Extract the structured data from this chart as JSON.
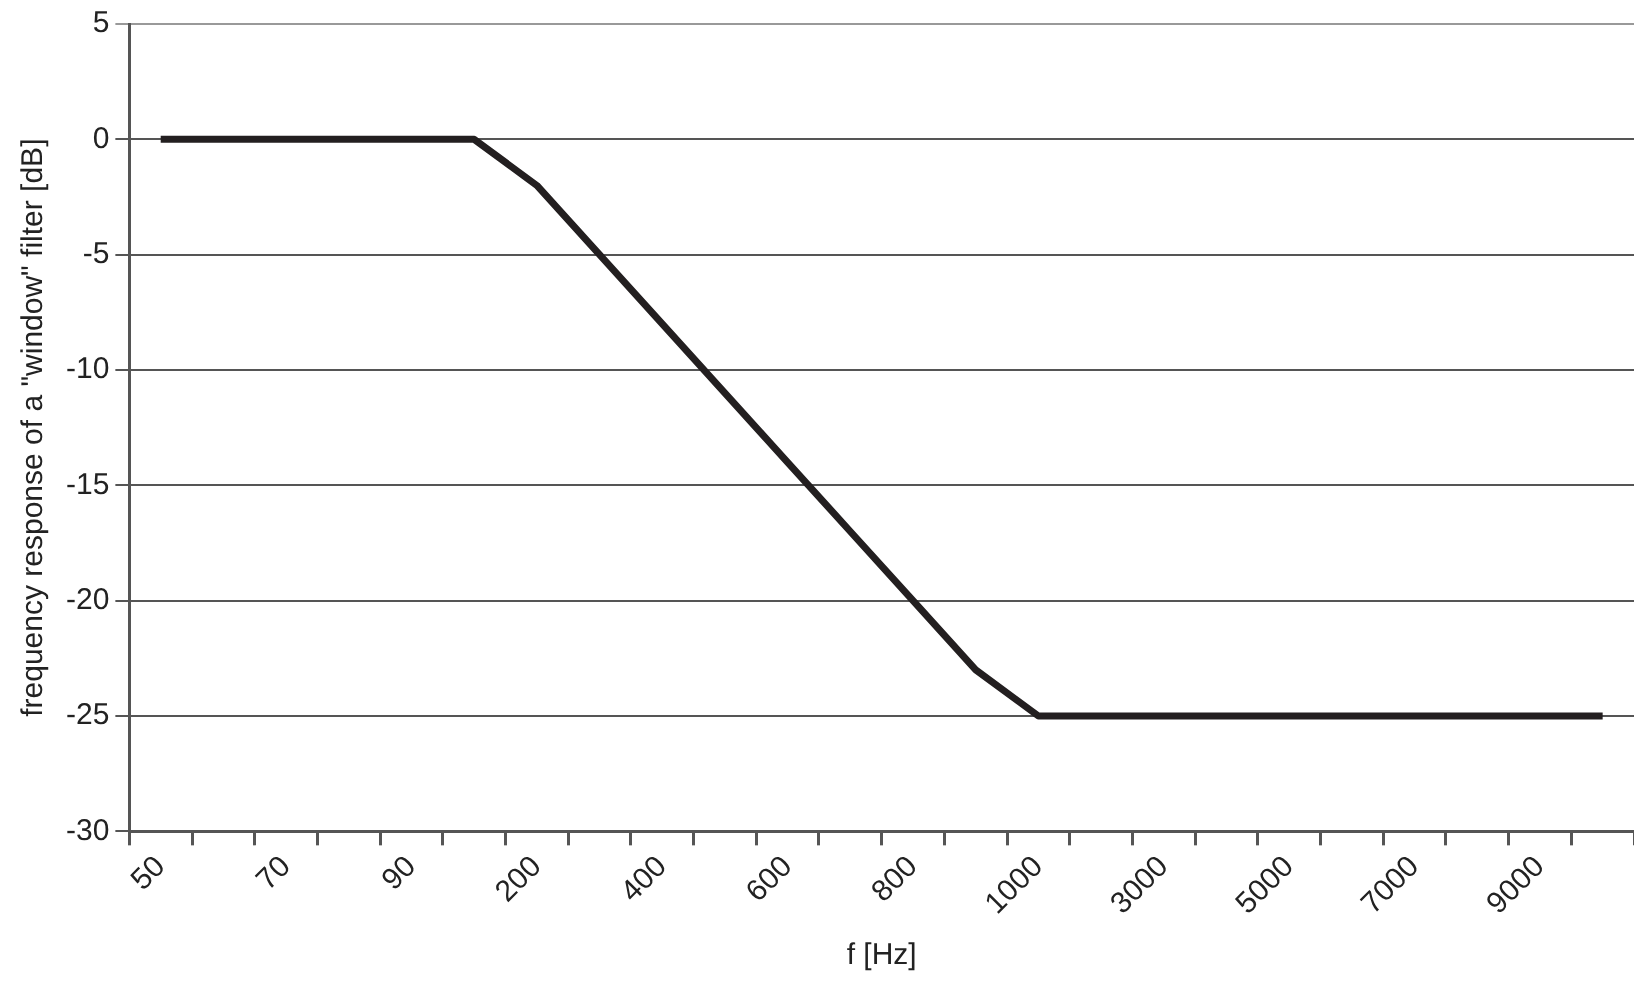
{
  "chart_data": {
    "type": "line",
    "xlabel": "f [Hz]",
    "ylabel": "frequency response of a \"window\" filter [dB]",
    "categories": [
      "50",
      null,
      "70",
      null,
      "90",
      null,
      "200",
      null,
      "400",
      null,
      "600",
      null,
      "800",
      null,
      "1000",
      null,
      "3000",
      null,
      "5000",
      null,
      "7000",
      null,
      "9000",
      null
    ],
    "series": [
      {
        "color": "#231f20",
        "values": [
          0,
          0,
          0,
          0,
          0,
          0,
          -2,
          -5,
          -8,
          -11,
          -14,
          -17,
          -20,
          -23,
          -25,
          -25,
          -25,
          -25,
          -25,
          -25,
          -25,
          -25,
          -25,
          -25
        ]
      }
    ],
    "ylim": [
      -30,
      5
    ],
    "yticks": [
      -30,
      -25,
      -20,
      -15,
      -10,
      -5,
      0,
      5
    ],
    "grid": "y",
    "legend": false,
    "marker": "none",
    "line_style": "solid"
  }
}
